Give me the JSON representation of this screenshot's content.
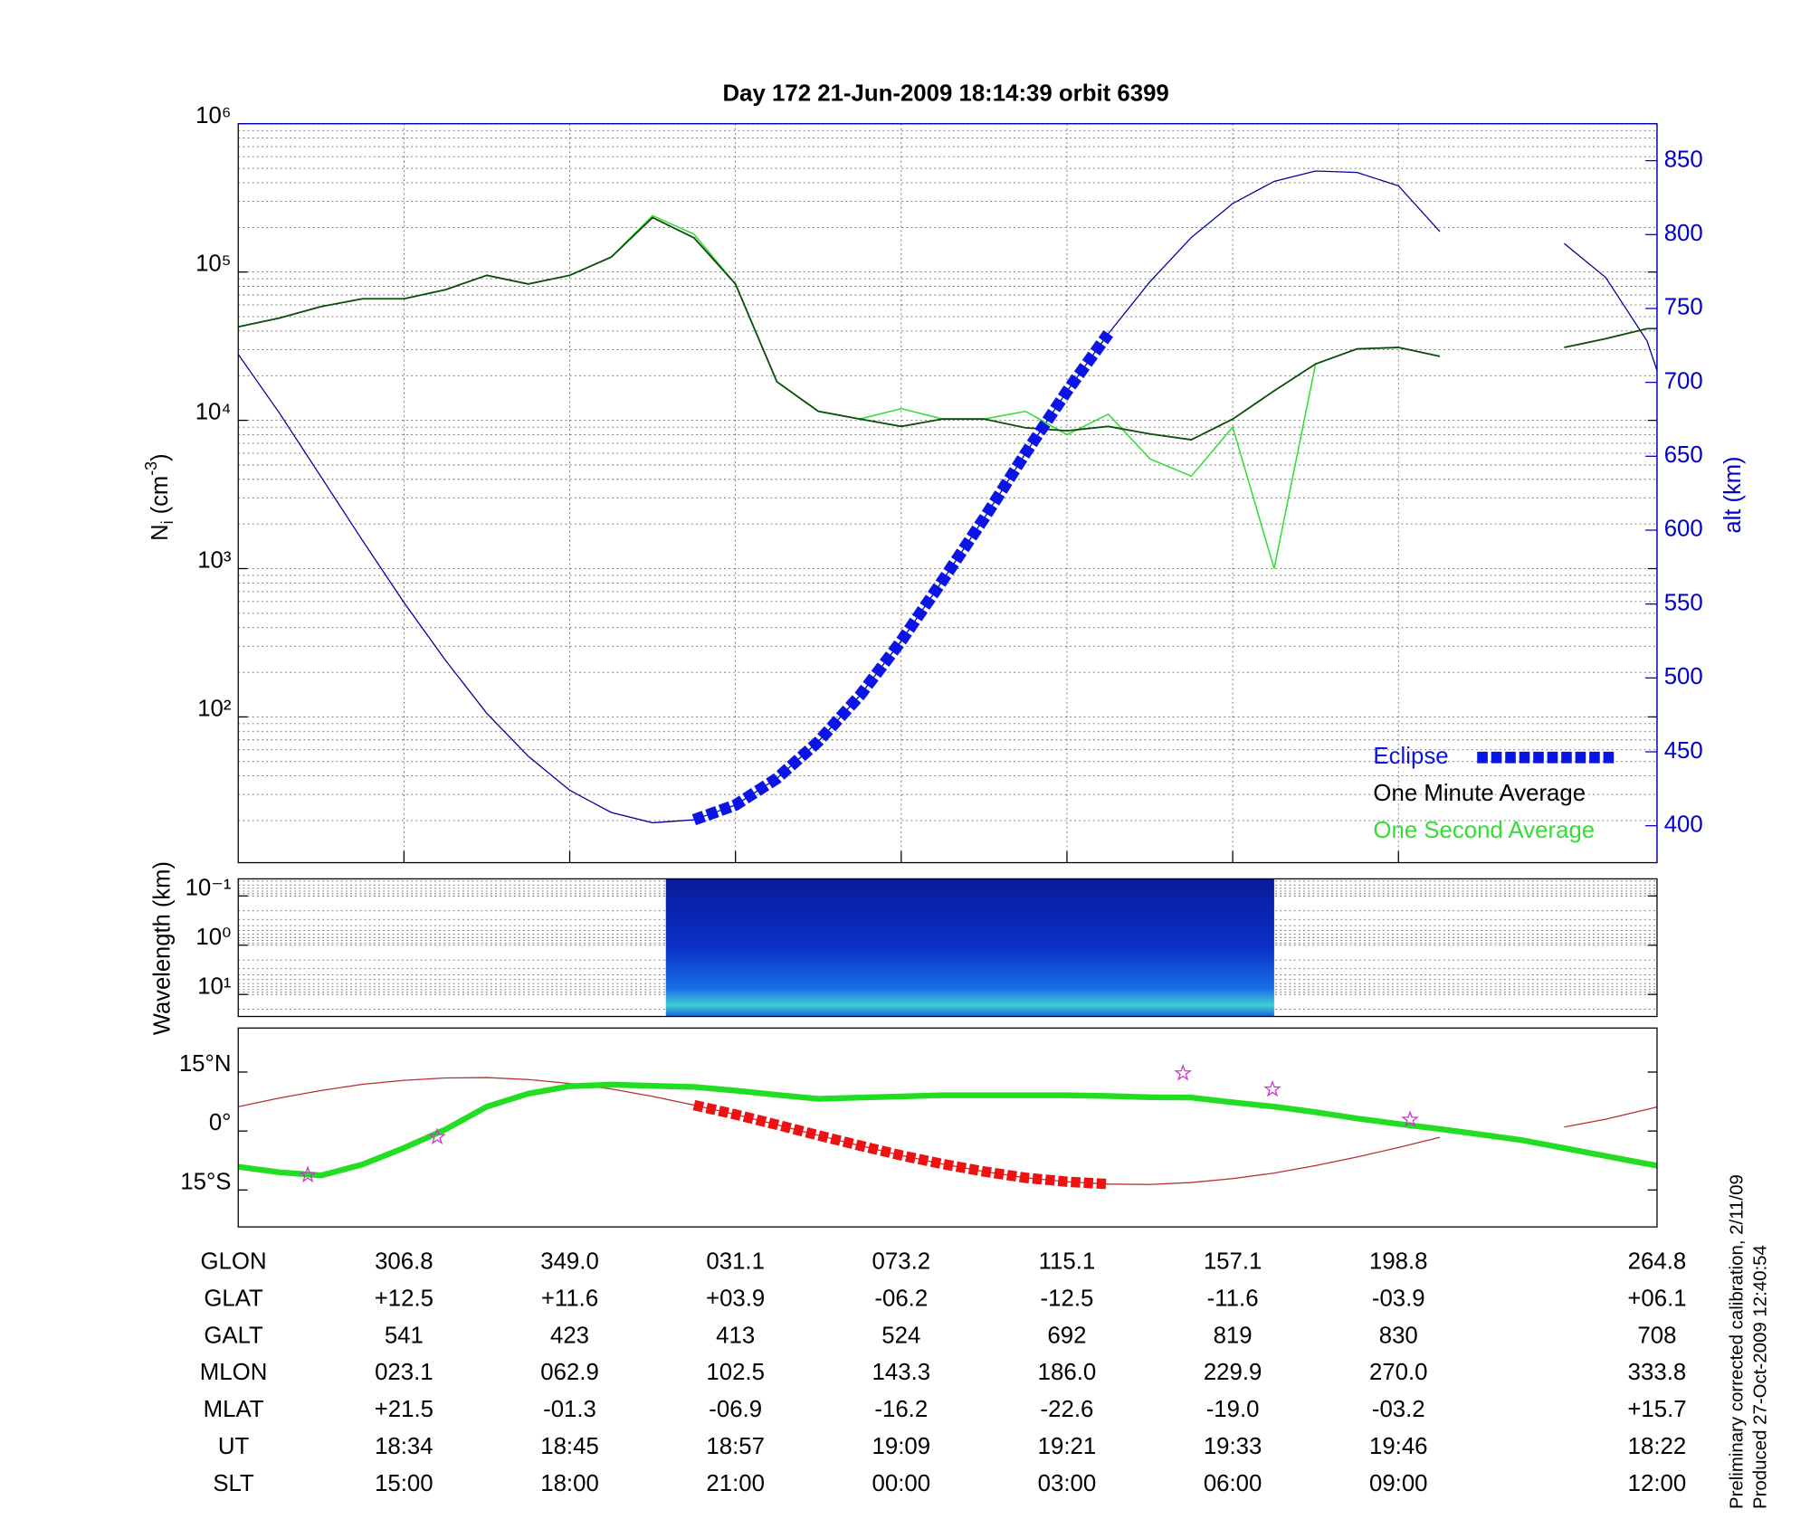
{
  "chart_data": [
    {
      "type": "line",
      "title": "Day 172  21-Jun-2009 18:14:39   orbit 6399",
      "ylabel_parts": [
        "N",
        "i",
        " (cm",
        "-3",
        ")"
      ],
      "y2label": "alt (km)",
      "x": [
        0,
        0.25,
        0.5,
        0.75,
        1,
        1.25,
        1.5,
        1.75,
        2,
        2.25,
        2.5,
        2.75,
        3,
        3.25,
        3.5,
        3.75,
        4,
        4.25,
        4.5,
        4.75,
        5,
        5.25,
        5.5,
        5.75,
        6,
        6.25,
        6.5,
        6.75,
        7,
        7.25,
        7.5,
        7.75,
        8,
        8.25,
        8.5,
        8.56
      ],
      "xlim": [
        0,
        8.56
      ],
      "xticks": [
        1,
        2,
        3,
        4,
        5,
        6,
        7
      ],
      "log_y": true,
      "ylim": [
        10.4,
        1000000
      ],
      "yticks": [
        {
          "value": 100,
          "label": "10²"
        },
        {
          "value": 1000,
          "label": "10³"
        },
        {
          "value": 10000,
          "label": "10⁴"
        },
        {
          "value": 100000,
          "label": "10⁵"
        },
        {
          "value": 1000000,
          "label": "10⁶"
        }
      ],
      "y2lim": [
        375,
        875
      ],
      "y2ticks": [
        400,
        450,
        500,
        550,
        600,
        650,
        700,
        750,
        800,
        850
      ],
      "y2color": "#0000cc",
      "grid": true,
      "legend": "lower right",
      "series": [
        {
          "name": "Eclipse",
          "color": "#0a14e6",
          "width": 10,
          "dash": "9 3",
          "axis": "y2",
          "legend_marker": true,
          "values": [
            null,
            null,
            null,
            null,
            null,
            null,
            null,
            null,
            null,
            null,
            null,
            404,
            414,
            432,
            457,
            488,
            525,
            566,
            608,
            652,
            694,
            733,
            null,
            null,
            null,
            null,
            null,
            null,
            null,
            null,
            null,
            null,
            null,
            null,
            null,
            null
          ]
        },
        {
          "name": "One Minute Average",
          "color": "#0b4d0b",
          "label_color": "#000000",
          "width": 1.4,
          "values": [
            42700,
            49000,
            58500,
            66000,
            66000,
            76000,
            95000,
            83000,
            95000,
            126000,
            233000,
            170000,
            83000,
            18200,
            11500,
            10200,
            9100,
            10200,
            10200,
            8900,
            8500,
            9100,
            8100,
            7400,
            10200,
            15800,
            24000,
            30300,
            31000,
            27000,
            null,
            null,
            31000,
            35500,
            41500,
            41500
          ]
        },
        {
          "name": "One Second Average",
          "color": "#33dd33",
          "width": 1.2,
          "values": [
            42700,
            49000,
            58500,
            66000,
            66000,
            76000,
            95000,
            83000,
            95000,
            126000,
            240000,
            180000,
            83000,
            18200,
            11500,
            10200,
            12000,
            10200,
            10200,
            11500,
            8000,
            11000,
            5500,
            4200,
            9000,
            1000,
            24000,
            30300,
            31000,
            27000,
            null,
            null,
            31000,
            35500,
            41500,
            41500
          ]
        },
        {
          "color": "#00009a",
          "width": 1,
          "axis": "y2",
          "values": [
            719,
            679,
            636,
            593,
            551,
            512,
            476,
            447,
            424,
            409,
            402,
            404,
            414,
            432,
            457,
            488,
            525,
            566,
            608,
            652,
            694,
            733,
            768,
            798,
            821,
            836,
            843,
            842,
            833,
            802,
            null,
            null,
            794,
            771,
            728,
            708
          ]
        }
      ]
    },
    {
      "type": "spectrogram",
      "ylabel": "Wavelength (km)",
      "xlim": [
        0,
        8.56
      ],
      "log_y": true,
      "ylim": [
        28,
        0.045
      ],
      "yticks": [
        {
          "value": 0.1,
          "label": "10⁻¹"
        },
        {
          "value": 1,
          "label": "10⁰"
        },
        {
          "value": 10,
          "label": "10¹"
        }
      ],
      "grid": true,
      "data_xrange": [
        2.58,
        6.25
      ]
    },
    {
      "type": "map",
      "x": [
        0,
        0.25,
        0.5,
        0.75,
        1,
        1.25,
        1.5,
        1.75,
        2,
        2.25,
        2.5,
        2.75,
        3,
        3.25,
        3.5,
        3.75,
        4,
        4.25,
        4.5,
        4.75,
        5,
        5.25,
        5.5,
        5.75,
        6,
        6.25,
        6.5,
        6.75,
        7,
        7.25,
        7.5,
        7.75,
        8,
        8.25,
        8.5,
        8.56
      ],
      "xlim": [
        0,
        8.56
      ],
      "ylim": [
        -24.4,
        26.2
      ],
      "yticks": [
        {
          "value": -15,
          "label": "15°S"
        },
        {
          "value": 0,
          "label": "0°"
        },
        {
          "value": 15,
          "label": "15°N"
        }
      ],
      "series": [
        {
          "color": "#b83030",
          "width": 1,
          "values": [
            6.2,
            8.4,
            10.3,
            11.9,
            12.9,
            13.5,
            13.6,
            13.1,
            12.1,
            10.7,
            8.8,
            6.6,
            4.2,
            1.6,
            -1.1,
            -3.7,
            -6.2,
            -8.4,
            -10.3,
            -11.9,
            -12.9,
            -13.5,
            -13.6,
            -13.1,
            -12.1,
            -10.7,
            -8.8,
            -6.6,
            -4.2,
            -1.6,
            null,
            null,
            1.0,
            3.0,
            5.5,
            6.1
          ]
        },
        {
          "color": "#22dd22",
          "width": 5,
          "values": [
            -9.1,
            -10.5,
            -11.3,
            -8.5,
            -4.3,
            0.4,
            6.2,
            9.5,
            11.4,
            11.8,
            11.5,
            11.2,
            10.3,
            9.2,
            8.2,
            8.5,
            8.8,
            9.1,
            9.1,
            9.1,
            9.1,
            8.9,
            8.6,
            8.5,
            7.3,
            6.2,
            4.8,
            3.2,
            1.8,
            0.5,
            -0.9,
            -2.35,
            -4.35,
            -6.35,
            -8.35,
            -8.8
          ]
        },
        {
          "color": "#ee1111",
          "width": 9,
          "dash": "8 3",
          "values": [
            null,
            null,
            null,
            null,
            null,
            null,
            null,
            null,
            null,
            null,
            null,
            6.6,
            4.2,
            1.6,
            -1.1,
            -3.7,
            -6.2,
            -8.4,
            -10.3,
            -11.9,
            -12.9,
            -13.5,
            null,
            null,
            null,
            null,
            null,
            null,
            null,
            null,
            null,
            null,
            null,
            null,
            null,
            null
          ]
        }
      ],
      "points": {
        "color": "#cc33cc",
        "x": [
          0.42,
          1.2,
          5.7,
          6.24,
          7.07
        ],
        "y": [
          -11.2,
          -1.5,
          14.7,
          10.6,
          2.9
        ]
      }
    }
  ],
  "table": {
    "rows": [
      {
        "label": "GLON",
        "values": [
          "306.8",
          "349.0",
          "031.1",
          "073.2",
          "115.1",
          "157.1",
          "198.8",
          "264.8"
        ]
      },
      {
        "label": "GLAT",
        "values": [
          "+12.5",
          "+11.6",
          "+03.9",
          "-06.2",
          "-12.5",
          "-11.6",
          "-03.9",
          "+06.1"
        ]
      },
      {
        "label": "GALT",
        "values": [
          "541",
          "423",
          "413",
          "524",
          "692",
          "819",
          "830",
          "708"
        ]
      },
      {
        "label": "MLON",
        "values": [
          "023.1",
          "062.9",
          "102.5",
          "143.3",
          "186.0",
          "229.9",
          "270.0",
          "333.8"
        ]
      },
      {
        "label": "MLAT",
        "values": [
          "+21.5",
          "-01.3",
          "-06.9",
          "-16.2",
          "-22.6",
          "-19.0",
          "-03.2",
          "+15.7"
        ]
      },
      {
        "label": "UT",
        "values": [
          "18:34",
          "18:45",
          "18:57",
          "19:09",
          "19:21",
          "19:33",
          "19:46",
          "18:22"
        ]
      },
      {
        "label": "SLT",
        "values": [
          "15:00",
          "18:00",
          "21:00",
          "00:00",
          "03:00",
          "06:00",
          "09:00",
          "12:00"
        ]
      }
    ]
  },
  "footer": [
    "Preliminary corrected calibration, 2/11/09",
    "Produced 27-Oct-2009 12:40:54"
  ]
}
